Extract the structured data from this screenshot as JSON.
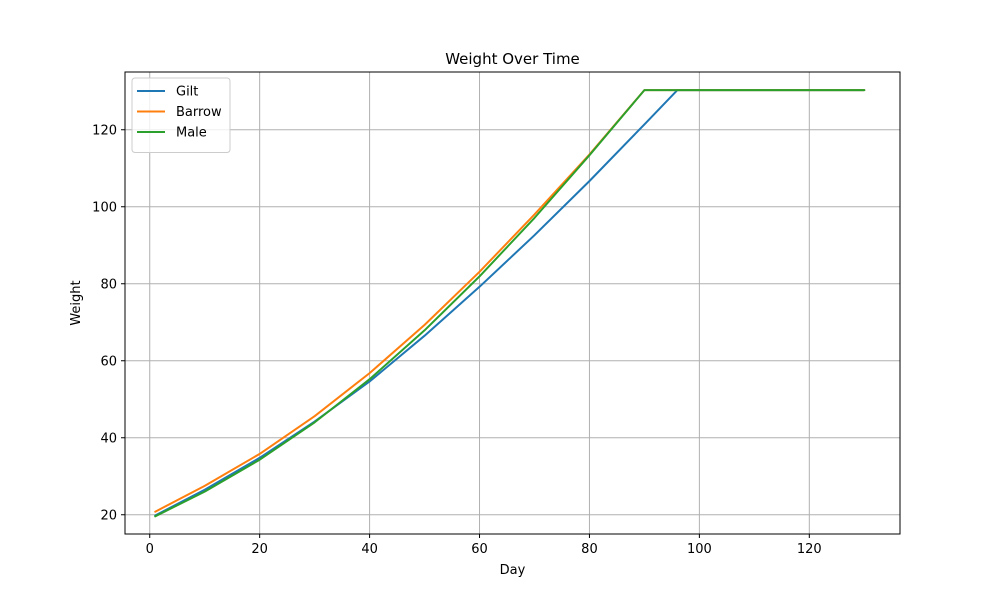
{
  "chart_data": {
    "type": "line",
    "title": "Weight Over Time",
    "xlabel": "Day",
    "ylabel": "Weight",
    "xlim": [
      -4.5,
      136.5
    ],
    "ylim": [
      15,
      135
    ],
    "xticks": [
      0,
      20,
      40,
      60,
      80,
      100,
      120
    ],
    "yticks": [
      20,
      40,
      60,
      80,
      100,
      120
    ],
    "grid": true,
    "legend_position": "top-left",
    "series": [
      {
        "name": "Gilt",
        "color": "#1f77b4",
        "x": [
          1,
          10,
          20,
          30,
          40,
          50,
          60,
          70,
          80,
          90,
          96,
          100,
          110,
          120,
          130
        ],
        "y": [
          19.8,
          26.5,
          34.8,
          44.2,
          54.6,
          66.5,
          79.2,
          92.6,
          106.7,
          121.4,
          130.3,
          130.3,
          130.3,
          130.3,
          130.3
        ]
      },
      {
        "name": "Barrow",
        "color": "#ff7f0e",
        "x": [
          1,
          10,
          20,
          30,
          40,
          50,
          60,
          70,
          80,
          90,
          100,
          110,
          120,
          130
        ],
        "y": [
          20.8,
          27.5,
          35.8,
          45.6,
          56.8,
          69.3,
          83.1,
          98.0,
          113.6,
          130.3,
          130.3,
          130.3,
          130.3,
          130.3
        ]
      },
      {
        "name": "Male",
        "color": "#2ca02c",
        "x": [
          1,
          10,
          20,
          30,
          40,
          50,
          60,
          70,
          80,
          90,
          100,
          110,
          120,
          130
        ],
        "y": [
          19.6,
          26.0,
          34.3,
          44.0,
          55.2,
          67.9,
          81.9,
          97.1,
          113.4,
          130.3,
          130.3,
          130.3,
          130.3,
          130.3
        ]
      }
    ]
  }
}
